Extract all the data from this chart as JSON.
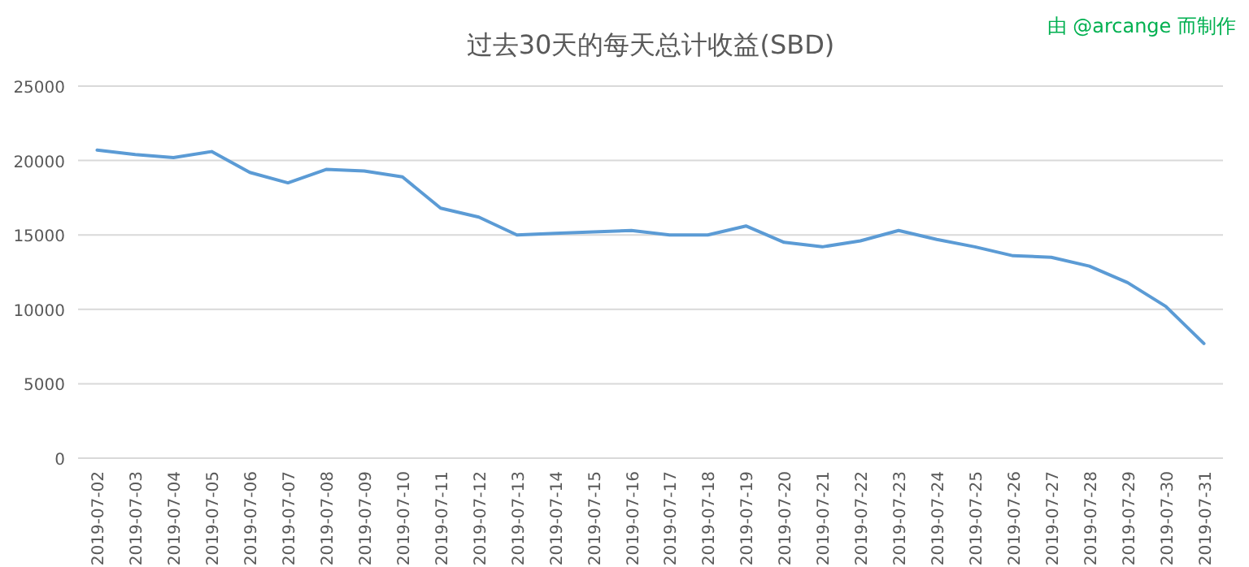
{
  "chart_data": {
    "type": "line",
    "title": "过去30天的每天总计收益(SBD)",
    "annotations": [
      "由 @arcange 而制作"
    ],
    "categories": [
      "2019-07-02",
      "2019-07-03",
      "2019-07-04",
      "2019-07-05",
      "2019-07-06",
      "2019-07-07",
      "2019-07-08",
      "2019-07-09",
      "2019-07-10",
      "2019-07-11",
      "2019-07-12",
      "2019-07-13",
      "2019-07-14",
      "2019-07-15",
      "2019-07-16",
      "2019-07-17",
      "2019-07-18",
      "2019-07-19",
      "2019-07-20",
      "2019-07-21",
      "2019-07-22",
      "2019-07-23",
      "2019-07-24",
      "2019-07-25",
      "2019-07-26",
      "2019-07-27",
      "2019-07-28",
      "2019-07-29",
      "2019-07-30",
      "2019-07-31"
    ],
    "series": [
      {
        "color": "#5b9bd5",
        "values": [
          20700,
          20400,
          20200,
          20600,
          19200,
          18500,
          19400,
          19300,
          18900,
          16800,
          16200,
          15000,
          15100,
          15200,
          15300,
          15000,
          15000,
          15600,
          14500,
          14200,
          14600,
          15300,
          14700,
          14200,
          13600,
          13500,
          12900,
          11800,
          10200,
          7700
        ]
      }
    ],
    "ylim": [
      0,
      25000
    ],
    "yticks": [
      0,
      5000,
      10000,
      15000,
      20000,
      25000
    ],
    "grid": "y",
    "marker": "none",
    "line_style": "solid"
  }
}
